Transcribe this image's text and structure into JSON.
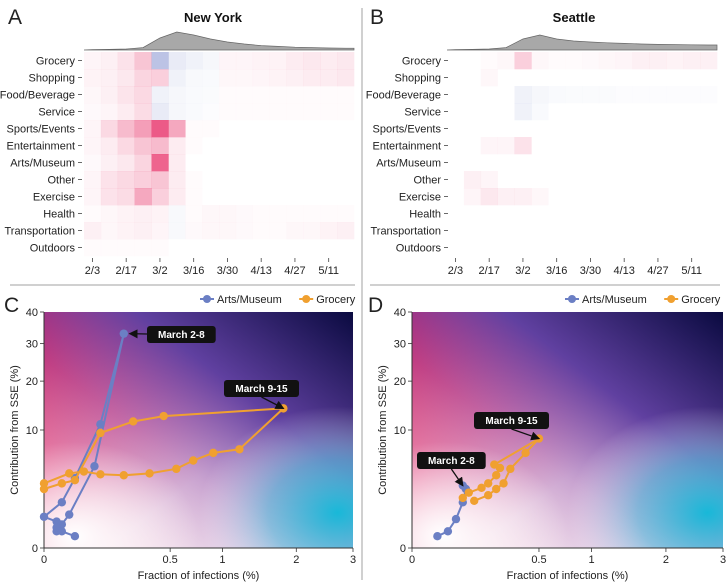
{
  "chart_data": [
    {
      "panel": "A",
      "type": "heatmap",
      "title": "New York",
      "categories": [
        "Grocery",
        "Shopping",
        "Food/Beverage",
        "Service",
        "Sports/Events",
        "Entertainment",
        "Arts/Museum",
        "Other",
        "Exercise",
        "Health",
        "Transportation",
        "Outdoors"
      ],
      "x_ticks": [
        "2/3",
        "2/17",
        "3/2",
        "3/16",
        "3/30",
        "4/13",
        "4/27",
        "5/11"
      ],
      "n_weeks": 16,
      "values": [
        [
          0.05,
          0.08,
          0.15,
          0.3,
          -0.45,
          -0.15,
          -0.1,
          -0.06,
          0.05,
          0.05,
          0.06,
          0.06,
          0.1,
          0.12,
          0.1,
          0.12
        ],
        [
          0.06,
          0.08,
          0.12,
          0.22,
          0.25,
          -0.1,
          -0.05,
          -0.04,
          0.04,
          0.04,
          0.05,
          0.06,
          0.08,
          0.1,
          0.1,
          0.12
        ],
        [
          0.04,
          0.08,
          0.14,
          0.2,
          -0.1,
          -0.06,
          -0.04,
          -0.03,
          0.02,
          0.02,
          0.02,
          0.02,
          0.02,
          0.02,
          0.02,
          0.02
        ],
        [
          0.03,
          0.05,
          0.1,
          0.18,
          -0.15,
          -0.06,
          -0.04,
          -0.02,
          0.02,
          0.02,
          0.02,
          0.02,
          0.02,
          0.02,
          0.02,
          0.02
        ],
        [
          0.05,
          0.2,
          0.35,
          0.5,
          0.85,
          0.45,
          0.02,
          0.02,
          0.0,
          0.0,
          0.0,
          0.0,
          0.0,
          0.0,
          0.0,
          0.0
        ],
        [
          0.05,
          0.1,
          0.2,
          0.3,
          0.35,
          0.1,
          0.02,
          0.0,
          0.0,
          0.0,
          0.0,
          0.0,
          0.0,
          0.0,
          0.0,
          0.0
        ],
        [
          0.03,
          0.08,
          0.12,
          0.22,
          0.8,
          0.1,
          0.0,
          0.0,
          0.0,
          0.0,
          0.0,
          0.0,
          0.0,
          0.0,
          0.0,
          0.0
        ],
        [
          0.05,
          0.15,
          0.2,
          0.25,
          0.3,
          0.1,
          0.02,
          0.0,
          0.0,
          0.0,
          0.0,
          0.0,
          0.0,
          0.0,
          0.0,
          0.0
        ],
        [
          0.05,
          0.15,
          0.18,
          0.45,
          0.25,
          0.1,
          0.02,
          0.0,
          0.0,
          0.0,
          0.0,
          0.0,
          0.0,
          0.0,
          0.0,
          0.0
        ],
        [
          0.02,
          0.04,
          0.06,
          0.08,
          0.06,
          -0.05,
          0.02,
          0.04,
          0.04,
          0.03,
          0.02,
          0.02,
          0.02,
          0.02,
          0.02,
          0.02
        ],
        [
          0.08,
          0.04,
          0.06,
          0.08,
          0.05,
          -0.05,
          0.03,
          0.04,
          0.04,
          0.03,
          0.02,
          0.02,
          0.04,
          0.04,
          0.06,
          0.08
        ],
        [
          0.02,
          0.02,
          0.02,
          0.02,
          0.02,
          0.0,
          0.0,
          0.0,
          0.0,
          0.0,
          0.0,
          0.0,
          0.0,
          0.0,
          0.0,
          0.0
        ]
      ]
    },
    {
      "panel": "B",
      "type": "heatmap",
      "title": "Seattle",
      "categories": [
        "Grocery",
        "Shopping",
        "Food/Beverage",
        "Service",
        "Sports/Events",
        "Entertainment",
        "Arts/Museum",
        "Other",
        "Exercise",
        "Health",
        "Transportation",
        "Outdoors"
      ],
      "x_ticks": [
        "2/3",
        "2/17",
        "3/2",
        "3/16",
        "3/30",
        "4/13",
        "4/27",
        "5/11"
      ],
      "n_weeks": 16,
      "values": [
        [
          0.0,
          0.0,
          0.02,
          0.04,
          0.25,
          0.04,
          0.02,
          0.02,
          0.03,
          0.04,
          0.05,
          0.08,
          0.08,
          0.06,
          0.08,
          0.08
        ],
        [
          0.0,
          0.0,
          0.04,
          0.0,
          0.0,
          0.0,
          0.0,
          0.0,
          0.0,
          0.0,
          0.0,
          0.0,
          0.0,
          0.0,
          0.0,
          0.0
        ],
        [
          0.0,
          0.0,
          0.0,
          0.0,
          -0.1,
          -0.06,
          -0.04,
          -0.03,
          -0.03,
          -0.03,
          -0.02,
          -0.02,
          -0.02,
          -0.02,
          -0.02,
          -0.02
        ],
        [
          0.0,
          0.0,
          0.0,
          0.0,
          -0.1,
          -0.04,
          0.0,
          0.0,
          0.0,
          0.0,
          0.0,
          0.0,
          0.0,
          0.0,
          0.0,
          0.0
        ],
        [
          0.0,
          0.0,
          0.0,
          0.0,
          0.0,
          0.0,
          0.0,
          0.0,
          0.0,
          0.0,
          0.0,
          0.0,
          0.0,
          0.0,
          0.0,
          0.0
        ],
        [
          0.0,
          0.0,
          0.05,
          0.05,
          0.15,
          0.0,
          0.0,
          0.0,
          0.0,
          0.0,
          0.0,
          0.0,
          0.0,
          0.0,
          0.0,
          0.0
        ],
        [
          0.0,
          0.0,
          0.0,
          0.0,
          0.0,
          0.0,
          0.0,
          0.0,
          0.0,
          0.0,
          0.0,
          0.0,
          0.0,
          0.0,
          0.0,
          0.0
        ],
        [
          0.0,
          0.08,
          0.05,
          0.0,
          0.0,
          0.0,
          0.0,
          0.0,
          0.0,
          0.0,
          0.0,
          0.0,
          0.0,
          0.0,
          0.0,
          0.0
        ],
        [
          0.0,
          0.05,
          0.12,
          0.08,
          0.08,
          0.04,
          0.0,
          0.0,
          0.0,
          0.0,
          0.0,
          0.0,
          0.0,
          0.0,
          0.0,
          0.0
        ],
        [
          0.0,
          0.0,
          0.0,
          0.0,
          0.0,
          0.0,
          0.0,
          0.0,
          0.0,
          0.0,
          0.0,
          0.0,
          0.0,
          0.0,
          0.0,
          0.0
        ],
        [
          0.0,
          0.0,
          0.0,
          0.0,
          0.0,
          0.0,
          0.0,
          0.0,
          0.0,
          0.0,
          0.0,
          0.0,
          0.0,
          0.0,
          0.0,
          0.0
        ],
        [
          0.0,
          0.0,
          0.0,
          0.0,
          0.0,
          0.0,
          0.0,
          0.0,
          0.0,
          0.0,
          0.0,
          0.0,
          0.0,
          0.0,
          0.0,
          0.0
        ]
      ],
      "density": [
        0.02,
        0.03,
        0.05,
        0.12,
        0.55,
        0.75,
        0.55,
        0.45,
        0.4,
        0.36,
        0.33,
        0.3,
        0.28,
        0.27,
        0.26,
        0.25
      ]
    },
    {
      "panel": "C",
      "type": "line",
      "xlabel": "Fraction of infections (%)",
      "ylabel": "Contribution from SSE (%)",
      "x_ticks": [
        "0",
        "0.5",
        "1",
        "2",
        "3"
      ],
      "x_tick_values": [
        0,
        0.5,
        1,
        2,
        3
      ],
      "y_ticks": [
        "0",
        "10",
        "20",
        "30",
        "40"
      ],
      "y_tick_values": [
        0,
        10,
        20,
        30,
        40
      ],
      "xlim": [
        0,
        3
      ],
      "ylim": [
        0,
        40
      ],
      "legend": [
        "Arts/Museum",
        "Grocery"
      ],
      "series": [
        {
          "name": "Arts/Museum",
          "color": "#6b7fc4",
          "x": [
            0.005,
            0.005,
            0.0,
            0.01,
            0.03,
            0.1,
            0.2,
            0.08,
            0.02,
            0.01,
            0.005,
            0.01,
            0.03
          ],
          "y": [
            0.2,
            0.5,
            0.7,
            1.5,
            3.5,
            11,
            33,
            4.8,
            0.8,
            0.4,
            0.3,
            0.2,
            0.1
          ]
        },
        {
          "name": "Grocery",
          "color": "#f0a030",
          "x": [
            0.0,
            0.01,
            0.03,
            0.1,
            0.25,
            0.45,
            1.8,
            1.2,
            0.9,
            0.7,
            0.55,
            0.35,
            0.2,
            0.1,
            0.05,
            0.02,
            0.0
          ],
          "y": [
            2.5,
            3.0,
            3.3,
            9.5,
            11.5,
            12.5,
            14,
            7,
            6.5,
            5.5,
            4.5,
            4.0,
            3.8,
            3.9,
            4.2,
            4.0,
            3.0
          ]
        }
      ],
      "annotations": [
        "March 2-8",
        "March 9-15"
      ]
    },
    {
      "panel": "D",
      "type": "line",
      "xlabel": "Fraction of infections (%)",
      "ylabel": "Contribution from SSE (%)",
      "x_ticks": [
        "0",
        "0.5",
        "1",
        "2",
        "3"
      ],
      "x_tick_values": [
        0,
        0.5,
        1,
        2,
        3
      ],
      "y_ticks": [
        "0",
        "10",
        "20",
        "30",
        "40"
      ],
      "y_tick_values": [
        0,
        10,
        20,
        30,
        40
      ],
      "xlim": [
        0,
        3
      ],
      "ylim": [
        0,
        40
      ],
      "legend": [
        "Arts/Museum",
        "Grocery"
      ],
      "series": [
        {
          "name": "Arts/Museum",
          "color": "#6b7fc4",
          "x": [
            0.02,
            0.04,
            0.06,
            0.08,
            0.09,
            0.08
          ],
          "y": [
            0.1,
            0.2,
            0.6,
            1.5,
            2.5,
            2.8
          ]
        },
        {
          "name": "Grocery",
          "color": "#f0a030",
          "x": [
            0.08,
            0.1,
            0.15,
            0.18,
            0.22,
            0.24,
            0.21,
            0.5,
            0.4,
            0.3,
            0.26,
            0.22,
            0.18,
            0.12
          ],
          "y": [
            1.8,
            2.2,
            2.6,
            3.0,
            3.8,
            4.6,
            5.0,
            8.6,
            6.5,
            4.5,
            3.0,
            2.5,
            2.0,
            1.6
          ]
        }
      ],
      "annotations": [
        "March 2-8",
        "March 9-15"
      ]
    }
  ],
  "colors": {
    "pink": "#e8336a",
    "blue": "#5a6bbf",
    "density_fill": "#a8a8a8"
  }
}
